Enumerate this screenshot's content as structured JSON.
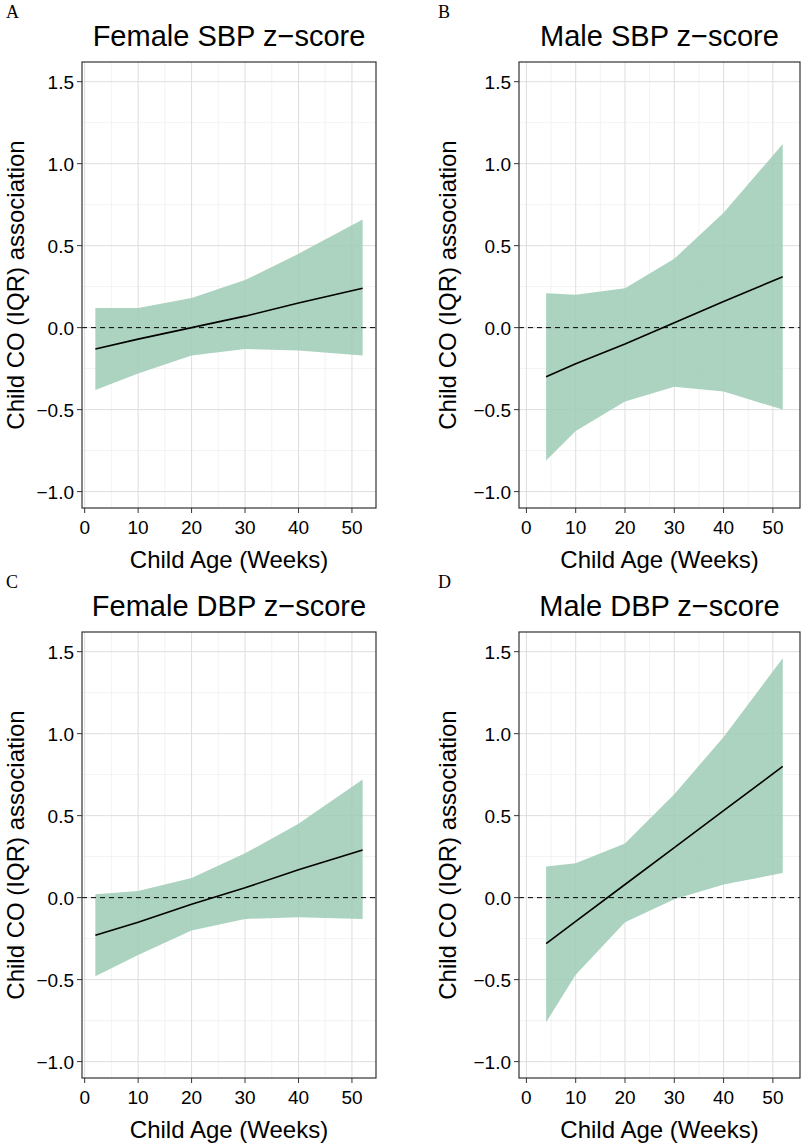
{
  "chart_data": [
    {
      "type": "line",
      "panel_label": "A",
      "title": "Female SBP z−score",
      "x_label": "Child Age (Weeks)",
      "y_label": "Child CO (IQR) association",
      "x": [
        2,
        10,
        20,
        30,
        40,
        52
      ],
      "series": [
        {
          "type": "line",
          "color": "#000000",
          "line_style": "solid",
          "values": [
            -0.13,
            -0.07,
            0.0,
            0.07,
            0.15,
            0.24
          ],
          "lower": [
            -0.38,
            -0.28,
            -0.17,
            -0.13,
            -0.14,
            -0.17
          ],
          "upper": [
            0.12,
            0.12,
            0.18,
            0.29,
            0.45,
            0.66
          ]
        }
      ],
      "reference_line": {
        "value": 0,
        "line_style": "dashed"
      },
      "xlim": [
        -0.5,
        54.5
      ],
      "xticks": [
        0,
        10,
        20,
        30,
        40,
        50
      ],
      "ylim": [
        -1.1,
        1.62
      ],
      "yticks": [
        {
          "value": -1,
          "label": "−1.0"
        },
        {
          "value": -0.5,
          "label": "−0.5"
        },
        {
          "value": 0,
          "label": "0.0"
        },
        {
          "value": 0.5,
          "label": "0.5"
        },
        {
          "value": 1,
          "label": "1.0"
        },
        {
          "value": 1.5,
          "label": "1.5"
        }
      ],
      "grid": true
    },
    {
      "type": "line",
      "panel_label": "B",
      "title": "Male SBP z−score",
      "x_label": "Child Age (Weeks)",
      "y_label": "Child CO (IQR) association",
      "x": [
        4,
        10,
        20,
        30,
        40,
        52
      ],
      "series": [
        {
          "type": "line",
          "color": "#000000",
          "line_style": "solid",
          "values": [
            -0.3,
            -0.22,
            -0.1,
            0.03,
            0.16,
            0.31
          ],
          "lower": [
            -0.81,
            -0.63,
            -0.45,
            -0.36,
            -0.39,
            -0.5
          ],
          "upper": [
            0.21,
            0.2,
            0.24,
            0.42,
            0.7,
            1.12
          ]
        }
      ],
      "reference_line": {
        "value": 0,
        "line_style": "dashed"
      },
      "xlim": [
        -1.5,
        55.5
      ],
      "xticks": [
        0,
        10,
        20,
        30,
        40,
        50
      ],
      "ylim": [
        -1.1,
        1.62
      ],
      "yticks": [
        {
          "value": -1,
          "label": "−1.0"
        },
        {
          "value": -0.5,
          "label": "−0.5"
        },
        {
          "value": 0,
          "label": "0.0"
        },
        {
          "value": 0.5,
          "label": "0.5"
        },
        {
          "value": 1,
          "label": "1.0"
        },
        {
          "value": 1.5,
          "label": "1.5"
        }
      ],
      "grid": true
    },
    {
      "type": "line",
      "panel_label": "C",
      "title": "Female DBP z−score",
      "x_label": "Child Age (Weeks)",
      "y_label": "Child CO (IQR) association",
      "x": [
        2,
        10,
        20,
        30,
        40,
        52
      ],
      "series": [
        {
          "type": "line",
          "color": "#000000",
          "line_style": "solid",
          "values": [
            -0.23,
            -0.15,
            -0.04,
            0.06,
            0.17,
            0.29
          ],
          "lower": [
            -0.48,
            -0.35,
            -0.2,
            -0.13,
            -0.12,
            -0.13
          ],
          "upper": [
            0.02,
            0.04,
            0.12,
            0.27,
            0.45,
            0.72
          ]
        }
      ],
      "reference_line": {
        "value": 0,
        "line_style": "dashed"
      },
      "xlim": [
        -0.5,
        54.5
      ],
      "xticks": [
        0,
        10,
        20,
        30,
        40,
        50
      ],
      "ylim": [
        -1.1,
        1.62
      ],
      "yticks": [
        {
          "value": -1,
          "label": "−1.0"
        },
        {
          "value": -0.5,
          "label": "−0.5"
        },
        {
          "value": 0,
          "label": "0.0"
        },
        {
          "value": 0.5,
          "label": "0.5"
        },
        {
          "value": 1,
          "label": "1.0"
        },
        {
          "value": 1.5,
          "label": "1.5"
        }
      ],
      "grid": true
    },
    {
      "type": "line",
      "panel_label": "D",
      "title": "Male DBP z−score",
      "x_label": "Child Age (Weeks)",
      "y_label": "Child CO (IQR) association",
      "x": [
        4,
        10,
        20,
        30,
        40,
        52
      ],
      "series": [
        {
          "type": "line",
          "color": "#000000",
          "line_style": "solid",
          "values": [
            -0.28,
            -0.145,
            0.08,
            0.305,
            0.53,
            0.8
          ],
          "lower": [
            -0.76,
            -0.47,
            -0.15,
            -0.01,
            0.08,
            0.15
          ],
          "upper": [
            0.19,
            0.21,
            0.33,
            0.63,
            0.98,
            1.46
          ]
        }
      ],
      "reference_line": {
        "value": 0,
        "line_style": "dashed"
      },
      "xlim": [
        -1.5,
        55.5
      ],
      "xticks": [
        0,
        10,
        20,
        30,
        40,
        50
      ],
      "ylim": [
        -1.1,
        1.62
      ],
      "yticks": [
        {
          "value": -1,
          "label": "−1.0"
        },
        {
          "value": -0.5,
          "label": "−0.5"
        },
        {
          "value": 0,
          "label": "0.0"
        },
        {
          "value": 0.5,
          "label": "0.5"
        },
        {
          "value": 1,
          "label": "1.0"
        },
        {
          "value": 1.5,
          "label": "1.5"
        }
      ],
      "grid": true
    }
  ]
}
